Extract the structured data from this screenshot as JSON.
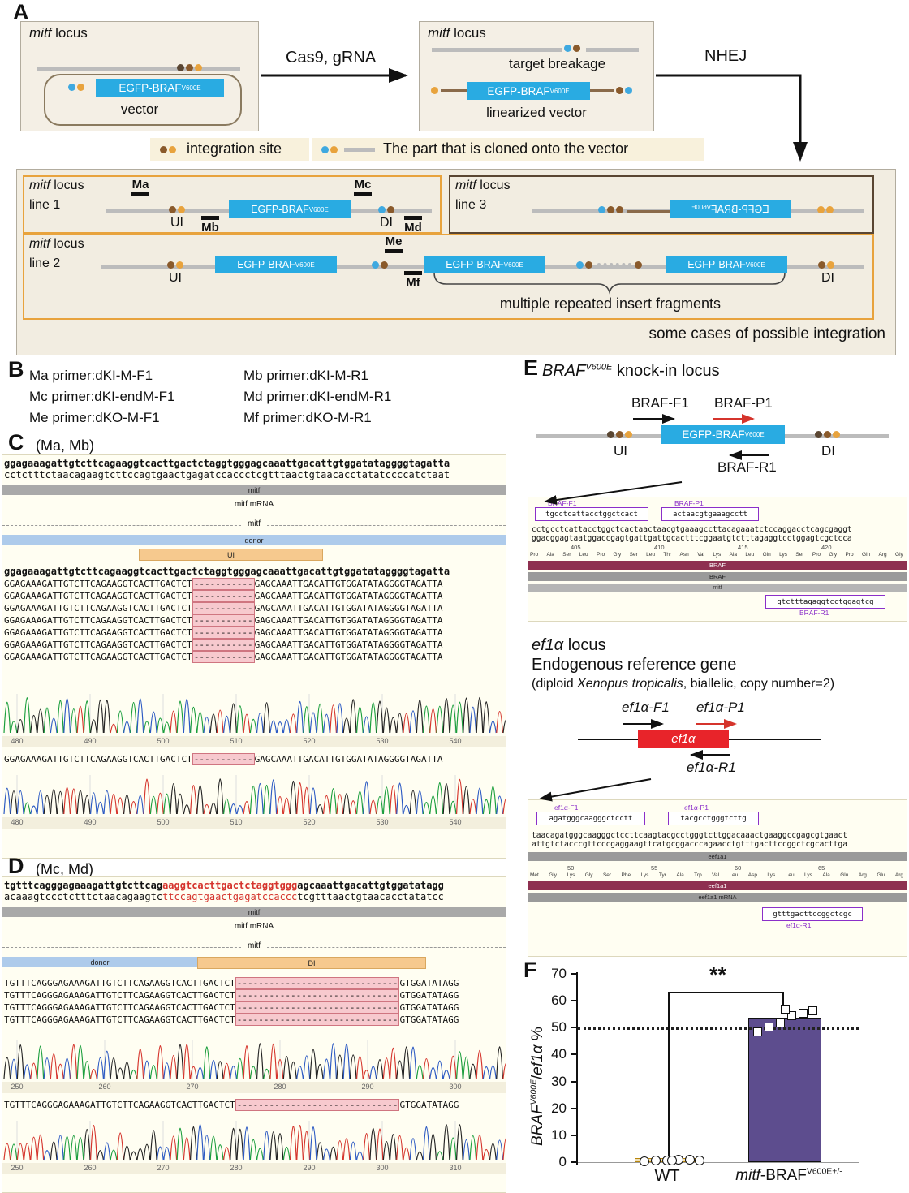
{
  "colors": {
    "blue": "#3fa9e0",
    "orange": "#e8a33d",
    "brown": "#8a5a2b",
    "darkbrown": "#5a4632",
    "egfp_blue": "#29abe2",
    "maroon": "#8e3050",
    "bar_purple": "#5d4d8e",
    "red": "#e8242a",
    "primer_purple": "#8b2fc9",
    "gray_line": "#bcbcbc"
  },
  "panelA": {
    "label": "A",
    "mitf": "mitf",
    "locus": " locus",
    "egfp": "EGFP-BRAF",
    "v600e": "V600E",
    "vector": "vector",
    "cas9": "Cas9, gRNA",
    "target_breakage": "target breakage",
    "linearized_vector": "linearized vector",
    "nhej": "NHEJ",
    "legend_integration": "integration site",
    "legend_cloned": "The part that is cloned onto the vector",
    "caption": "some cases of possible integration",
    "line1": "line 1",
    "line2": "line 2",
    "line3": "line 3",
    "UI": "UI",
    "DI": "DI",
    "Ma": "Ma",
    "Mb": "Mb",
    "Mc": "Mc",
    "Md": "Md",
    "Me": "Me",
    "Mf": "Mf",
    "repeat_note": "multiple repeated insert fragments"
  },
  "panelB": {
    "label": "B",
    "rows": [
      [
        "Ma primer:dKI-M-F1",
        "Mb primer:dKI-M-R1"
      ],
      [
        "Mc primer:dKI-endM-F1",
        "Md primer:dKI-endM-R1"
      ],
      [
        "Me primer:dKO-M-F1",
        "Mf primer:dKO-M-R1"
      ]
    ]
  },
  "panelC": {
    "label": "C",
    "sublabel": "(Ma, Mb)",
    "seq_top": "ggagaaagattgtcttcagaaggtcacttgactctaggtgggagcaaattgacattgtggatataggggtagatta",
    "seq_bottom": "cctctttctaacagaagtcttccagtgaactgagatccaccctcgtttaactgtaacacctatatccccatctaat",
    "tracks": {
      "mitf": "mitf",
      "mrna": "mitf mRNA",
      "mitf2": "mitf",
      "donor": "donor",
      "ui": "UI"
    },
    "read_ref": "ggagaaagattgtcttcagaaggtcacttgactctaggtgggagcaaattgacattgtggatataggggtagatta",
    "read_pre": "GGAGAAAGATTGTCTTCAGAAGGTCACTTGACTCT",
    "read_del": "-----------",
    "read_post": "GAGCAAATTGACATTGTGGATATAGGGGTAGATTA",
    "read_count": 7,
    "ruler1": [
      "480",
      "490",
      "500",
      "510",
      "520",
      "530",
      "540"
    ],
    "ruler2": [
      "480",
      "490",
      "500",
      "510",
      "520",
      "530",
      "540"
    ]
  },
  "panelD": {
    "label": "D",
    "sublabel": "(Mc, Md)",
    "seq_top1": "tgtttcagggagaaagattgtcttcag",
    "seq_top_red": "aaggtcacttgactctaggtggg",
    "seq_top2": "agcaaattgacattgtggatatagg",
    "seq_bot1": "acaaagtccctctttctaacagaagtc",
    "seq_bot_red": "ttccagtgaactgagatccaccc",
    "seq_bot2": "tcgtttaactgtaacacctatatcc",
    "tracks": {
      "mitf": "mitf",
      "mrna": "mitf mRNA",
      "mitf2": "mitf",
      "donor": "donor",
      "di": "DI"
    },
    "read_pre": "TGTTTCAGGGAGAAAGATTGTCTTCAGAAGGTCACTTGACTCT",
    "read_del": "------------------------------",
    "read_post": "GTGGATATAGG",
    "read_count": 4,
    "ruler1": [
      "250",
      "260",
      "270",
      "280",
      "290",
      "300"
    ],
    "ruler2": [
      "250",
      "260",
      "270",
      "280",
      "290",
      "300",
      "310"
    ]
  },
  "panelE": {
    "label": "E",
    "title_gene": "BRAF",
    "title_sup": "V600E",
    "title_rest": " knock-in locus",
    "braf_f1": "BRAF-F1",
    "braf_p1": "BRAF-P1",
    "braf_r1": "BRAF-R1",
    "UI": "UI",
    "DI": "DI",
    "egfp": "EGFP-BRAF",
    "v600e": "V600E",
    "braf_box": {
      "f1_label": "BRAF-F1",
      "f1_seq": "tgcctcattacctggctcact",
      "p1_label": "BRAF-P1",
      "p1_seq": "actaacgtgaaagcctt",
      "seq1": "cctgcctcattacctggctcactaactaacgtgaaagccttacagaaatctccaggacctcagcgaggt",
      "seq2": "ggacggagtaatggaccgagtgattgattgcactttcggaatgtctttagaggtcctggagtcgctcca",
      "ruler": [
        "405",
        "410",
        "415",
        "420"
      ],
      "residues": "Pro Ala Ser Leu Pro Gly Ser Leu Thr Asn Val Lys Ala Leu Gln Lys Ser Pro Gly Pro Gln Arg Gly",
      "bar1": "BRAF",
      "bar2": "BRAF",
      "bar3": "mitf",
      "r1_seq": "gtctttagaggtcctggagtcg",
      "r1_label": "BRAF-R1"
    },
    "ef1a_gene": "ef1α",
    "ef1a_locus_rest": " locus",
    "endo_title": "Endogenous reference gene",
    "endo_pre": "(diploid ",
    "endo_italic": "Xenopus tropicalis",
    "endo_post": ", biallelic, copy number=2)",
    "ef1a_f1": "ef1α-F1",
    "ef1a_p1": "ef1α-P1",
    "ef1a_r1": "ef1α-R1",
    "ef1a_box": {
      "f1_label": "ef1α-F1",
      "f1_seq": "agatgggcaagggctcctt",
      "p1_label": "ef1α-P1",
      "p1_seq": "tacgcctgggtcttg",
      "seq1": "taacagatgggcaagggctccttcaagtacgcctgggtcttggacaaactgaaggccgagcgtgaact",
      "seq2": "attgtctacccgttcccgaggaagttcatgcggacccagaacctgtttgacttccggctcgcacttga",
      "bar0": "eef1a1",
      "ruler": [
        "50",
        "55",
        "60",
        "65"
      ],
      "residues": "Met Gly Lys Gly Ser Phe Lys Tyr Ala Trp Val Leu Asp Lys Leu Lys Ala Glu Arg Glu Arg",
      "bar1": "eef1a1",
      "bar2": "eef1a1 mRNA",
      "r1_seq": "gtttgacttccggctcgc",
      "r1_label": "ef1α-R1"
    }
  },
  "panelF": {
    "label": "F",
    "sig": "**",
    "xlabel1": "WT",
    "x2_italic": "mitf",
    "x2_rest": "-BRAF",
    "x2_sup": "V600E+/-",
    "y_italic1": "BRAF",
    "y_sup": "V600E",
    "y_slash": "/",
    "y_italic2": "ef1α",
    "y_pct": " %"
  },
  "chart_data": {
    "type": "bar",
    "categories": [
      "WT",
      "mitf-BRAF V600E+/-"
    ],
    "values": [
      1,
      53
    ],
    "points": [
      [
        0.7,
        0.9,
        1.0,
        1.1,
        1.2,
        1.0,
        0.8
      ],
      [
        48.5,
        50.5,
        52,
        54.5,
        55.5,
        56.5,
        57
      ]
    ],
    "ylabel": "BRAF V600E / ef1α %",
    "ylim": [
      0,
      70
    ],
    "yticks": [
      0,
      10,
      20,
      30,
      40,
      50,
      60,
      70
    ],
    "reference_line": 50,
    "significance": "**",
    "bar_colors": [
      "#f0dfb6",
      "#5d4d8e"
    ],
    "legend_position": "none",
    "grid": false
  }
}
